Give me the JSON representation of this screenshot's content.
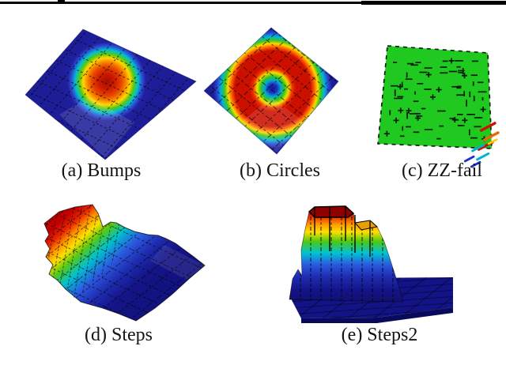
{
  "figures": [
    {
      "id": "a",
      "caption": "(a) Bumps",
      "type": "3d-surface-plot",
      "colormap": "jet",
      "shape": "rotated square mesh with central gaussian bump"
    },
    {
      "id": "b",
      "caption": "(b) Circles",
      "type": "3d-surface-plot",
      "colormap": "jet",
      "shape": "rotated square mesh with concentric red ring around blue center"
    },
    {
      "id": "c",
      "caption": "(c) ZZ-fail",
      "type": "3d-surface-plot",
      "colormap": "jet",
      "shape": "flat green surface with scattered black error marks and rainbow spikes at bottom-right corner"
    },
    {
      "id": "d",
      "caption": "(d) Steps",
      "type": "3d-surface-plot",
      "colormap": "jet",
      "shape": "staircase surface descending from red ridge to flat navy base"
    },
    {
      "id": "e",
      "caption": "(e) Steps2",
      "type": "3d-surface-plot",
      "colormap": "jet",
      "shape": "tall stepped plateau with rainbow walls on flat navy base"
    }
  ],
  "colors": {
    "background": "#ffffff",
    "header_rule": "#000000",
    "caption_text": "#141414",
    "jet_dark_red": "#9c0000",
    "jet_red": "#cc0f00",
    "jet_orange": "#ff9000",
    "jet_yellow": "#ffe000",
    "jet_green": "#44c814",
    "jet_cyan": "#00c2cc",
    "jet_blue": "#2b5ae0",
    "jet_navy": "#16168e",
    "flat_green": "#1fc91f",
    "mesh_line": "#000000"
  }
}
